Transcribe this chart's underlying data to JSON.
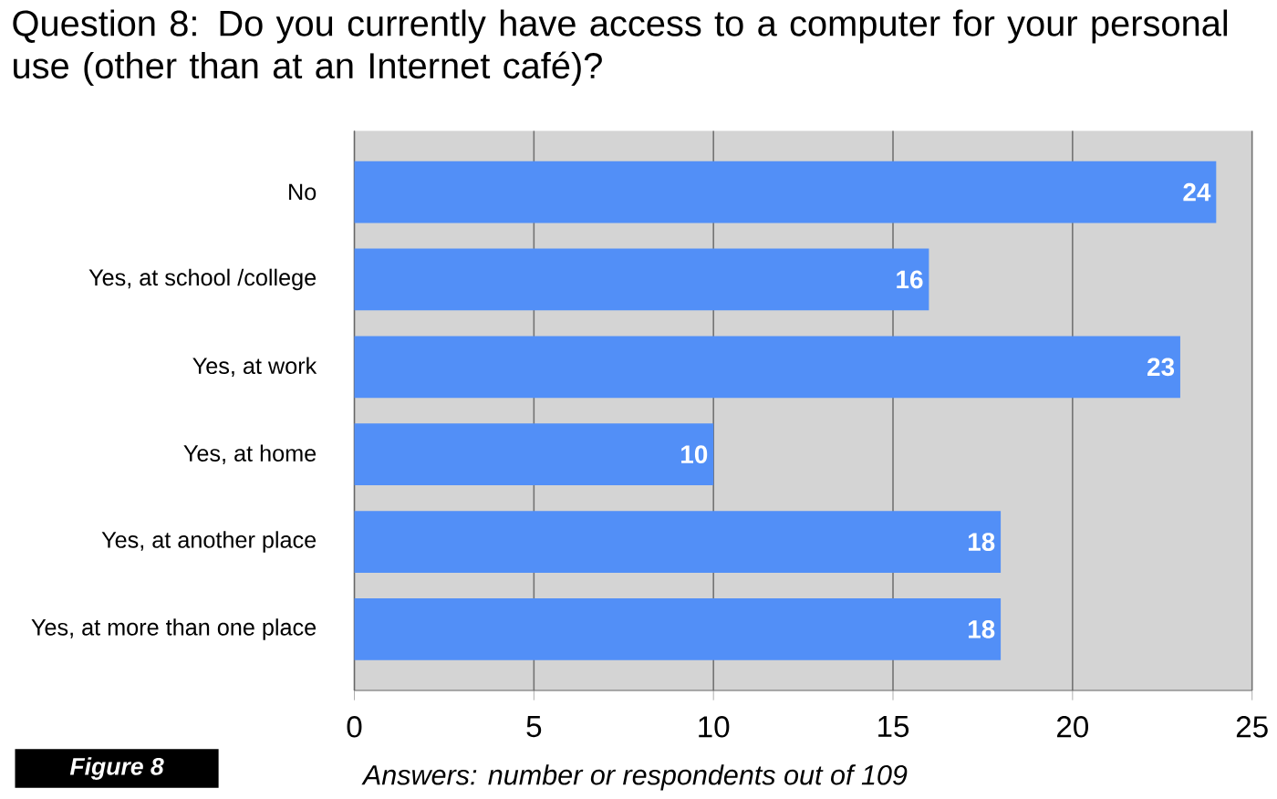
{
  "chart_data": {
    "type": "bar",
    "orientation": "horizontal",
    "title": "Question 8: Do you currently have access to a computer for your personal use (other than at an Internet café)?",
    "xlabel": "Answers: number or respondents out of 109",
    "categories": [
      "No",
      "Yes, at school /college",
      "Yes, at work",
      "Yes, at home",
      "Yes, at another place",
      "Yes, at more than one place"
    ],
    "values": [
      24,
      16,
      23,
      10,
      18,
      18
    ],
    "color": "#528ff7",
    "xlim": [
      0,
      25
    ],
    "xticks": [
      0,
      5,
      10,
      15,
      20,
      25
    ],
    "grid": "x",
    "data_labels": true,
    "annotations": [
      "Figure 8"
    ]
  }
}
